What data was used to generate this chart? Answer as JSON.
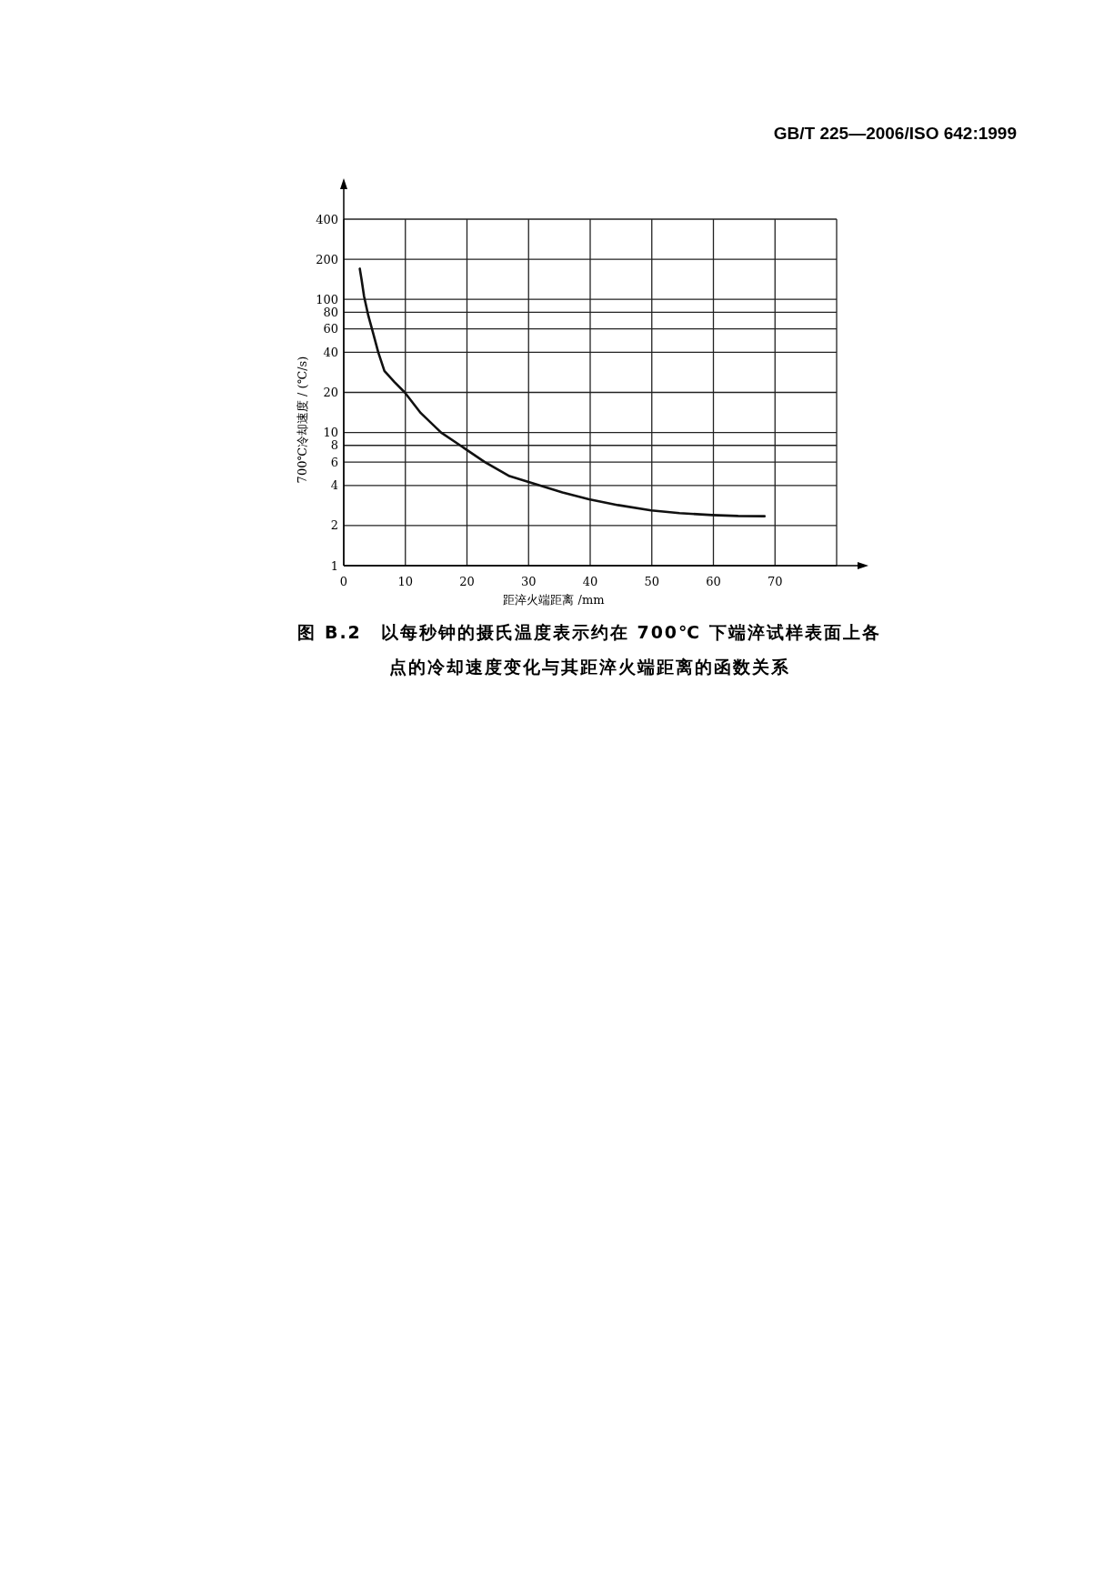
{
  "chart_data": {
    "type": "line",
    "title": "图 B.2　以每秒钟的摄氏温度表示约在 700℃ 下端淬试样表面上各点的冷却速度变化与其距淬火端距离的函数关系",
    "xlabel": "距淬火端距离 /mm",
    "ylabel": "700℃冷却速度 / (℃/s)",
    "annotations": [
      "GB/T 225—2006/ISO 642:1999"
    ],
    "series": [
      {
        "color": "#111111",
        "x": [
          2.6,
          2.9,
          3.3,
          4.0,
          4.8,
          5.6,
          6.6,
          8.2,
          9.9,
          12.5,
          15.8,
          18.9,
          22.9,
          26.9,
          31.8,
          35.5,
          39.8,
          44.5,
          49.9,
          54.5,
          59.8,
          64.0,
          68.3
        ],
        "values": [
          170,
          140,
          105,
          75,
          55,
          40,
          29,
          24,
          20,
          14,
          10,
          8,
          6,
          4.7,
          4,
          3.55,
          3.15,
          2.85,
          2.6,
          2.48,
          2.4,
          2.36,
          2.35
        ]
      }
    ],
    "log": "y",
    "xlim": [
      0,
      80
    ],
    "ylim": [
      1,
      400
    ],
    "xticks": [
      0,
      10,
      20,
      30,
      40,
      50,
      60,
      70,
      {
        "value": 80,
        "label": null
      }
    ],
    "yticks": [
      1,
      2,
      4,
      6,
      8,
      10,
      20,
      40,
      60,
      80,
      100,
      200,
      400
    ],
    "grid": true,
    "marker": "none",
    "line_style": "solid"
  }
}
